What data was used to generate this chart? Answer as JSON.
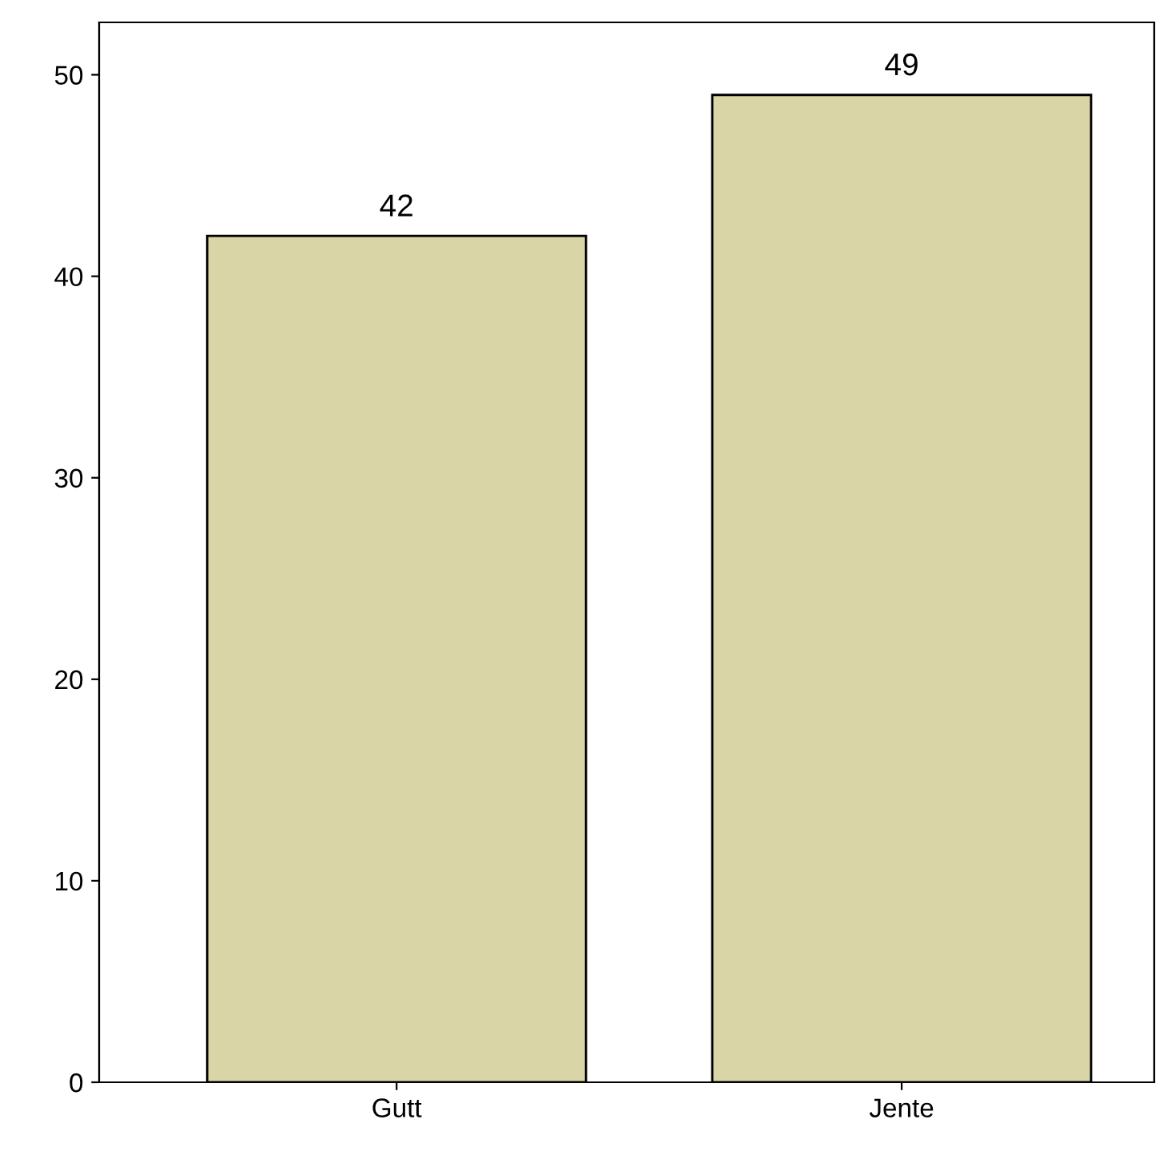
{
  "chart_data": {
    "type": "bar",
    "categories": [
      "Gutt",
      "Jente"
    ],
    "values": [
      42,
      49
    ],
    "color": "#d9d5a6",
    "ylim": [
      0,
      52.6
    ],
    "yticks": [
      0,
      10,
      20,
      30,
      40,
      50
    ],
    "grid": false,
    "data_labels": true
  }
}
